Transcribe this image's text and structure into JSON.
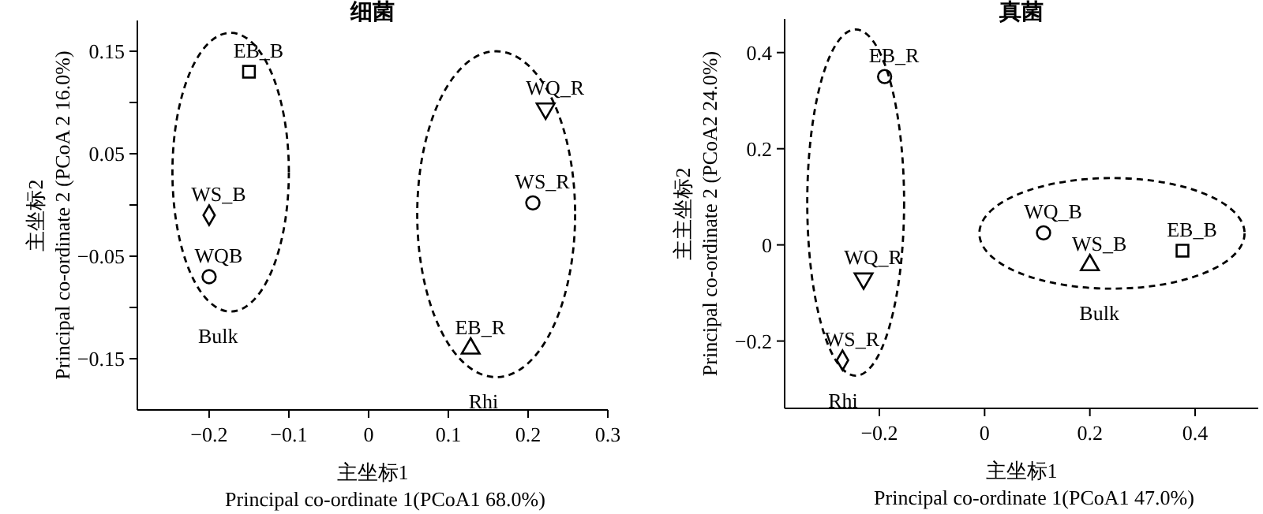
{
  "chart_data": [
    {
      "type": "scatter",
      "title": "细菌",
      "xlabel": "主坐标1\nPrincipal co-ordinate 1(PCoA1 68.0%)",
      "ylabel": "主坐标2\nPrincipal co-ordinate 2 (PCoA 2 16.0%)",
      "xlim": [
        -0.29,
        0.3
      ],
      "ylim": [
        -0.2,
        0.18
      ],
      "xticks": [
        -0.2,
        -0.1,
        0,
        0.1,
        0.2,
        0.3
      ],
      "yticks": [
        -0.15,
        {
          "value": -0.1,
          "label": null
        },
        -0.05,
        {
          "value": 0,
          "label": null
        },
        0.05,
        {
          "value": 0.1,
          "label": null
        },
        0.15
      ],
      "grid": false,
      "legend": false,
      "series": [
        {
          "name": "EB_B",
          "color": "#000000",
          "marker": "square",
          "x": [
            -0.15
          ],
          "values": [
            0.13
          ]
        },
        {
          "name": "WS_B",
          "color": "#000000",
          "marker": "diamond",
          "x": [
            -0.2
          ],
          "values": [
            -0.01
          ]
        },
        {
          "name": "WQB",
          "color": "#000000",
          "marker": "circle",
          "x": [
            -0.2
          ],
          "values": [
            -0.07
          ]
        },
        {
          "name": "WQ_R",
          "color": "#000000",
          "marker": "triangle-down",
          "x": [
            0.222
          ],
          "values": [
            0.094
          ]
        },
        {
          "name": "WS_R",
          "color": "#000000",
          "marker": "circle",
          "x": [
            0.206
          ],
          "values": [
            0.002
          ]
        },
        {
          "name": "EB_R",
          "color": "#000000",
          "marker": "triangle",
          "x": [
            0.128
          ],
          "values": [
            -0.14
          ]
        }
      ],
      "annotations": [
        "Bulk",
        "Rhi"
      ]
    },
    {
      "type": "scatter",
      "title": "真菌",
      "xlabel": "主坐标1\nPrincipal co-ordinate 1(PCoA1 47.0%)",
      "ylabel": "主主坐标2\nPrincipal co-ordinate 2 (PCoA2 24.0%)",
      "xlim": [
        -0.38,
        0.52
      ],
      "ylim": [
        -0.34,
        0.47
      ],
      "xticks": [
        -0.2,
        0,
        0.2,
        0.4
      ],
      "yticks": [
        -0.2,
        0,
        0.2,
        0.4
      ],
      "grid": false,
      "legend": false,
      "series": [
        {
          "name": "EB_R",
          "color": "#000000",
          "marker": "circle",
          "x": [
            -0.19
          ],
          "values": [
            0.35
          ]
        },
        {
          "name": "WQ_R",
          "color": "#000000",
          "marker": "triangle-down",
          "x": [
            -0.23
          ],
          "values": [
            -0.07
          ]
        },
        {
          "name": "WS_R",
          "color": "#000000",
          "marker": "diamond",
          "x": [
            -0.27
          ],
          "values": [
            -0.24
          ]
        },
        {
          "name": "WQ_B",
          "color": "#000000",
          "marker": "circle",
          "x": [
            0.112
          ],
          "values": [
            0.025
          ]
        },
        {
          "name": "WS_B",
          "color": "#000000",
          "marker": "triangle",
          "x": [
            0.2
          ],
          "values": [
            -0.042
          ]
        },
        {
          "name": "EB_B",
          "color": "#000000",
          "marker": "square",
          "x": [
            0.376
          ],
          "values": [
            -0.012
          ]
        }
      ],
      "annotations": [
        "Rhi",
        "Bulk"
      ]
    }
  ]
}
